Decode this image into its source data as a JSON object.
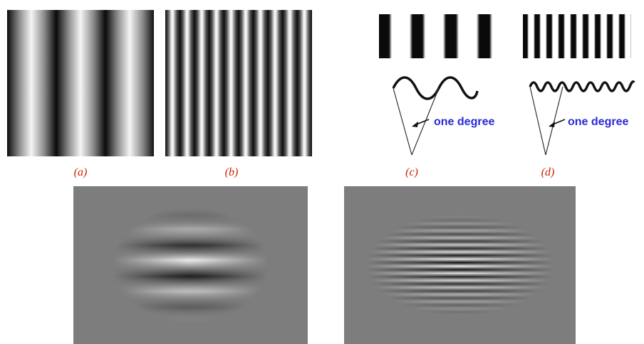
{
  "panels": {
    "a": {
      "label": "(a)"
    },
    "b": {
      "label": "(b)"
    },
    "c": {
      "label": "(c)",
      "angle_text": "one degree"
    },
    "d": {
      "label": "(d)",
      "angle_text": "one degree"
    }
  },
  "colors": {
    "panel_label": "#cc2200",
    "angle_text": "#2a2ad6",
    "gabor_background": "#7d7d7d"
  }
}
